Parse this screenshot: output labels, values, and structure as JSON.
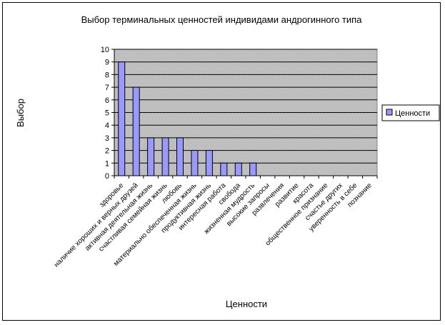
{
  "chart_data": {
    "type": "bar",
    "title": "Выбор терминальных ценностей индивидами андрогинного типа",
    "xlabel": "Ценности",
    "ylabel": "Выбор",
    "ylim": [
      0,
      10
    ],
    "y_ticks": [
      "0",
      "1",
      "2",
      "3",
      "4",
      "5",
      "6",
      "7",
      "8",
      "9",
      "10"
    ],
    "grid": true,
    "legend_position": "right",
    "plot_background": "#c0c0c0",
    "bar_color": "#9999ff",
    "categories": [
      "здоровье",
      "наличие хороших и верных друзей",
      "активная деятельная жизнь",
      "счастливая семейная жизнь",
      "любовь",
      "материально обеспеченная жизнь",
      "продуктивная жизнь",
      "интересная работа",
      "свобода",
      "жизненная мудрость",
      "высокие запросы",
      "развлечения",
      "развитие",
      "красота",
      "общественное признание",
      "счастье других",
      "уверенность в себе",
      "познание"
    ],
    "series": [
      {
        "name": "Ценности",
        "values": [
          9,
          7,
          3,
          3,
          3,
          2,
          2,
          1,
          1,
          1,
          0,
          0,
          0,
          0,
          0,
          0,
          0,
          0
        ]
      }
    ]
  }
}
